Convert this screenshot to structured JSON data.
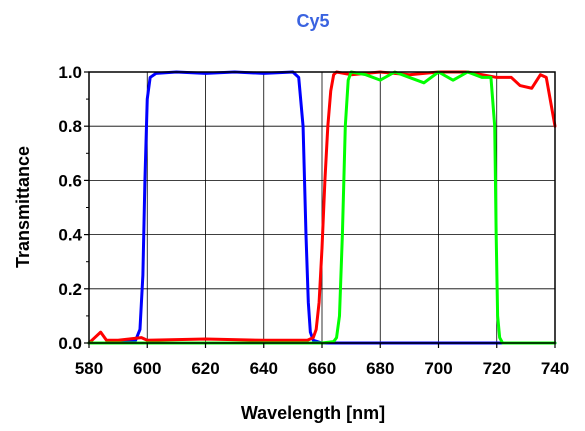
{
  "colors": {
    "title": "#3a63e0",
    "blue": "#0000ff",
    "red": "#ff0000",
    "green": "#00ff00",
    "grid": "#000000"
  },
  "chart_data": {
    "type": "line",
    "title": "Cy5",
    "xlabel": "Wavelength [nm]",
    "ylabel": "Transmittance",
    "xlim": [
      580,
      740
    ],
    "ylim": [
      0,
      1
    ],
    "grid": true,
    "x_ticks": [
      "580",
      "600",
      "620",
      "640",
      "660",
      "680",
      "700",
      "720",
      "740"
    ],
    "y_ticks": [
      "0.0",
      "0.2",
      "0.4",
      "0.6",
      "0.8",
      "1.0"
    ],
    "series": [
      {
        "color": "blue",
        "x": [
          580,
          590,
          596,
          597.5,
          598.5,
          599.2,
          600,
          601,
          603,
          610,
          620,
          630,
          640,
          650,
          652,
          653.5,
          654.5,
          655.3,
          656,
          657,
          660,
          740
        ],
        "y": [
          0.0,
          0.0,
          0.01,
          0.05,
          0.25,
          0.6,
          0.9,
          0.98,
          0.995,
          1.0,
          0.995,
          1.0,
          0.995,
          1.0,
          0.98,
          0.8,
          0.4,
          0.15,
          0.04,
          0.01,
          0.0,
          0.0
        ]
      },
      {
        "color": "red",
        "x": [
          580,
          582,
          584,
          586,
          590,
          598,
          600,
          620,
          640,
          650,
          655,
          657,
          658,
          659,
          660,
          661,
          662,
          663,
          664,
          665,
          670,
          680,
          690,
          700,
          710,
          715,
          720,
          725,
          728,
          732,
          735,
          737,
          740
        ],
        "y": [
          0.0,
          0.02,
          0.04,
          0.01,
          0.01,
          0.02,
          0.01,
          0.015,
          0.01,
          0.01,
          0.01,
          0.02,
          0.05,
          0.15,
          0.35,
          0.6,
          0.8,
          0.93,
          0.99,
          1.0,
          0.99,
          1.0,
          0.99,
          1.0,
          1.0,
          0.99,
          0.98,
          0.98,
          0.95,
          0.94,
          0.99,
          0.98,
          0.8
        ]
      },
      {
        "color": "green",
        "x": [
          580,
          640,
          660,
          664,
          665,
          666,
          667,
          668,
          669,
          670,
          675,
          680,
          685,
          690,
          695,
          700,
          705,
          710,
          715,
          718,
          719.3,
          719.8,
          720.3,
          721,
          722,
          725,
          740
        ],
        "y": [
          0.0,
          0.0,
          0.0,
          0.005,
          0.02,
          0.1,
          0.4,
          0.8,
          0.97,
          1.0,
          0.99,
          0.97,
          1.0,
          0.98,
          0.96,
          1.0,
          0.97,
          1.0,
          0.98,
          0.98,
          0.8,
          0.4,
          0.1,
          0.02,
          0.0,
          0.0,
          0.0
        ]
      }
    ]
  }
}
